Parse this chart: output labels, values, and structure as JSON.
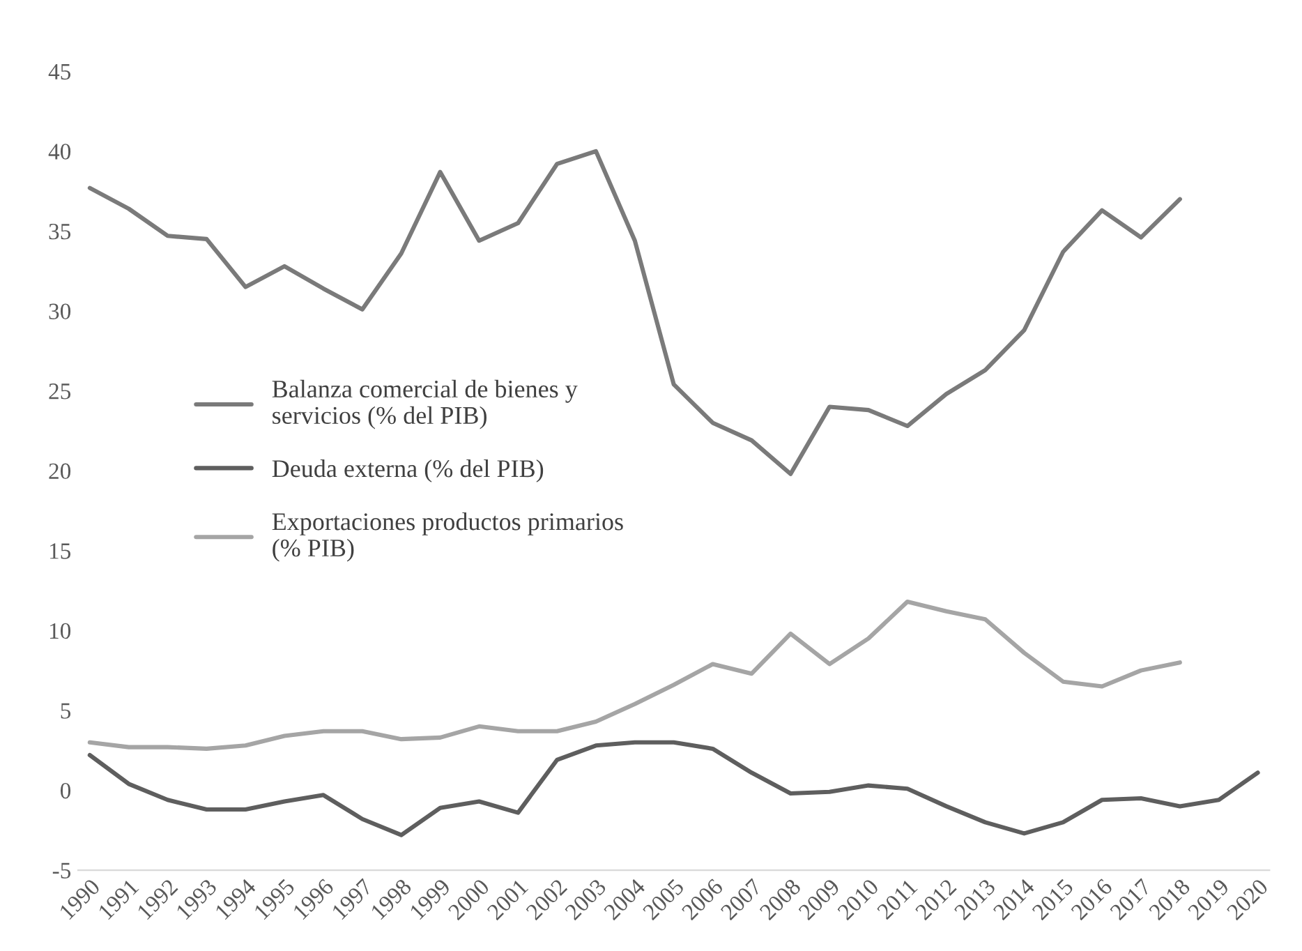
{
  "chart_data": {
    "type": "line",
    "categories": [
      "1990",
      "1991",
      "1992",
      "1993",
      "1994",
      "1995",
      "1996",
      "1997",
      "1998",
      "1999",
      "2000",
      "2001",
      "2002",
      "2003",
      "2004",
      "2005",
      "2006",
      "2007",
      "2008",
      "2009",
      "2010",
      "2011",
      "2012",
      "2013",
      "2014",
      "2015",
      "2016",
      "2017",
      "2018",
      "2019",
      "2020"
    ],
    "series": [
      {
        "name": "Balanza comercial de bienes y\nservicios (% del PIB)",
        "color": "#7a7a7a",
        "values": [
          37.7,
          36.4,
          34.7,
          34.5,
          31.5,
          32.8,
          31.4,
          30.1,
          33.6,
          38.7,
          34.4,
          35.5,
          39.2,
          40.0,
          34.4,
          25.4,
          23.0,
          21.9,
          19.8,
          24.0,
          23.8,
          22.8,
          24.8,
          26.3,
          28.8,
          33.7,
          36.3,
          34.6,
          37.0,
          null,
          null
        ]
      },
      {
        "name": "Deuda externa (% del PIB)",
        "color": "#5e5e5e",
        "values": [
          2.2,
          0.4,
          -0.6,
          -1.2,
          -1.2,
          -0.7,
          -0.3,
          -1.8,
          -2.8,
          -1.1,
          -0.7,
          -1.4,
          1.9,
          2.8,
          3.0,
          3.0,
          2.6,
          1.1,
          -0.2,
          -0.1,
          0.3,
          0.1,
          -1.0,
          -2.0,
          -2.7,
          -2.0,
          -0.6,
          -0.5,
          -1.0,
          -0.6,
          1.1
        ]
      },
      {
        "name": "Exportaciones productos primarios\n(% PIB)",
        "color": "#a5a5a5",
        "values": [
          3.0,
          2.7,
          2.7,
          2.6,
          2.8,
          3.4,
          3.7,
          3.7,
          3.2,
          3.3,
          4.0,
          3.7,
          3.7,
          4.3,
          5.4,
          6.6,
          7.9,
          7.3,
          9.8,
          7.9,
          9.5,
          11.8,
          11.2,
          10.7,
          8.6,
          6.8,
          6.5,
          7.5,
          8.0,
          null,
          null
        ]
      }
    ],
    "ylim": [
      -5,
      45
    ],
    "yticks": [
      -5,
      0,
      5,
      10,
      15,
      20,
      25,
      30,
      35,
      40,
      45
    ],
    "grid": false,
    "legend": "left",
    "marker": "none",
    "line_style": "solid"
  }
}
